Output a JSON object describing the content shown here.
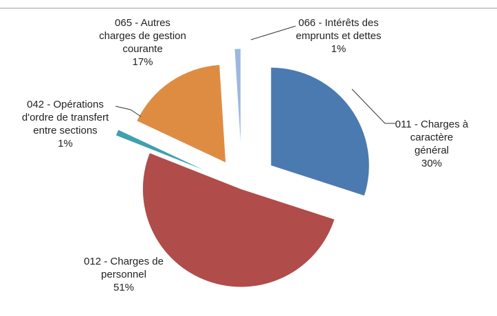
{
  "chart_data": {
    "type": "pie",
    "categories": [
      "011 - Charges à caractère général",
      "012 - Charges de personnel",
      "042 - Opérations d'ordre de transfert entre sections",
      "065 - Autres charges de gestion courante",
      "066 - Intérêts des emprunts et dettes"
    ],
    "values": [
      30,
      51,
      1,
      17,
      1
    ],
    "value_labels": [
      "30%",
      "51%",
      "1%",
      "17%",
      "1%"
    ],
    "colors": [
      "#4a7ab0",
      "#b04c4a",
      "#3fa0b0",
      "#df8c43",
      "#9db8de"
    ]
  }
}
